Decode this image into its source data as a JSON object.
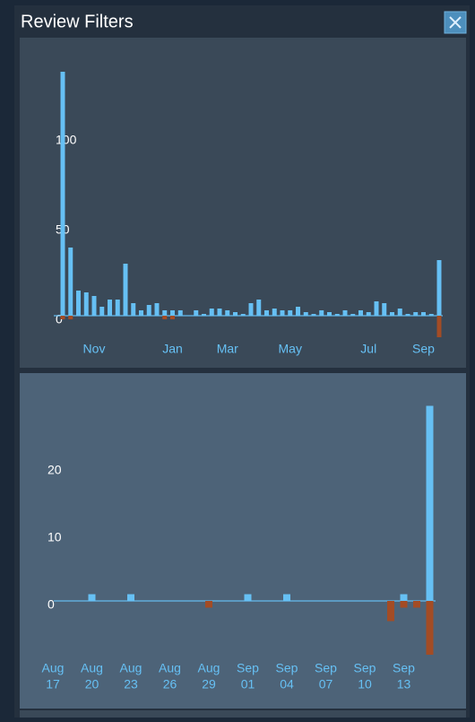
{
  "header": {
    "title": "Review Filters"
  },
  "chart_data": [
    {
      "type": "bar",
      "categories": [
        null,
        null,
        null,
        null,
        "Nov",
        null,
        null,
        null,
        null,
        null,
        null,
        null,
        null,
        null,
        "Jan",
        null,
        null,
        null,
        null,
        null,
        null,
        "Mar",
        null,
        null,
        null,
        null,
        null,
        null,
        null,
        "May",
        null,
        null,
        null,
        null,
        null,
        null,
        null,
        null,
        null,
        "Jul",
        null,
        null,
        null,
        null,
        null,
        null,
        "Sep",
        null,
        null
      ],
      "series": [
        {
          "color": "#66c0f4",
          "values": [
            136,
            38,
            14,
            13,
            11,
            5,
            9,
            9,
            29,
            7,
            3,
            6,
            7,
            3,
            3,
            3,
            0,
            3,
            1,
            4,
            4,
            3,
            2,
            1,
            7,
            9,
            3,
            4,
            3,
            3,
            5,
            2,
            1,
            3,
            2,
            1,
            3,
            1,
            3,
            2,
            8,
            7,
            2,
            4,
            1,
            2,
            2,
            1,
            31
          ]
        },
        {
          "color": "#a34c25",
          "values": [
            -2,
            -2,
            0,
            0,
            0,
            0,
            0,
            0,
            0,
            0,
            0,
            0,
            0,
            -2,
            -2,
            0,
            0,
            0,
            0,
            0,
            0,
            0,
            0,
            0,
            0,
            0,
            0,
            0,
            0,
            0,
            0,
            0,
            0,
            0,
            0,
            0,
            0,
            0,
            0,
            0,
            0,
            0,
            0,
            0,
            0,
            0,
            0,
            0,
            -12
          ]
        }
      ],
      "ylim": [
        -15,
        140
      ],
      "yticks": [
        0,
        50,
        100
      ]
    },
    {
      "type": "bar",
      "categories": [
        [
          "Aug",
          "17"
        ],
        null,
        null,
        [
          "Aug",
          "20"
        ],
        null,
        null,
        [
          "Aug",
          "23"
        ],
        null,
        null,
        [
          "Aug",
          "26"
        ],
        null,
        null,
        [
          "Aug",
          "29"
        ],
        null,
        null,
        [
          "Sep",
          "01"
        ],
        null,
        null,
        [
          "Sep",
          "04"
        ],
        null,
        null,
        [
          "Sep",
          "07"
        ],
        null,
        null,
        [
          "Sep",
          "10"
        ],
        null,
        null,
        [
          "Sep",
          "13"
        ],
        null,
        null
      ],
      "series": [
        {
          "color": "#66c0f4",
          "values": [
            0,
            0,
            0,
            1,
            0,
            0,
            1,
            0,
            0,
            0,
            0,
            0,
            0,
            0,
            0,
            1,
            0,
            0,
            1,
            0,
            0,
            0,
            0,
            0,
            0,
            0,
            0,
            1,
            0,
            29
          ]
        },
        {
          "color": "#a34c25",
          "values": [
            0,
            0,
            0,
            0,
            0,
            0,
            0,
            0,
            0,
            0,
            0,
            0,
            -1,
            0,
            0,
            0,
            0,
            0,
            0,
            0,
            0,
            0,
            0,
            0,
            0,
            0,
            -3,
            -1,
            -1,
            -8
          ]
        }
      ],
      "ylim": [
        -9,
        30
      ],
      "yticks": [
        0,
        10,
        20
      ]
    }
  ]
}
